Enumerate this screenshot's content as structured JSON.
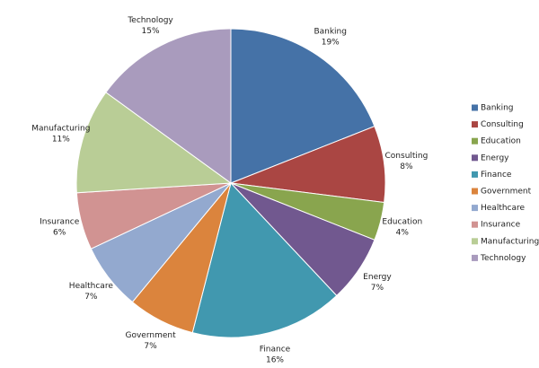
{
  "chart_data": {
    "type": "pie",
    "categories": [
      "Banking",
      "Consulting",
      "Education",
      "Energy",
      "Finance",
      "Government",
      "Healthcare",
      "Insurance",
      "Manufacturing",
      "Technology"
    ],
    "values": [
      19,
      8,
      4,
      7,
      16,
      7,
      7,
      6,
      11,
      15
    ],
    "value_labels": [
      "19%",
      "8%",
      "4%",
      "7%",
      "16%",
      "7%",
      "7%",
      "6%",
      "11%",
      "15%"
    ],
    "colors": [
      "#4572a7",
      "#aa4643",
      "#89a54e",
      "#71588f",
      "#4198af",
      "#db843d",
      "#93a9cf",
      "#d19392",
      "#b9cd96",
      "#a99bbd"
    ],
    "legend": "right"
  }
}
